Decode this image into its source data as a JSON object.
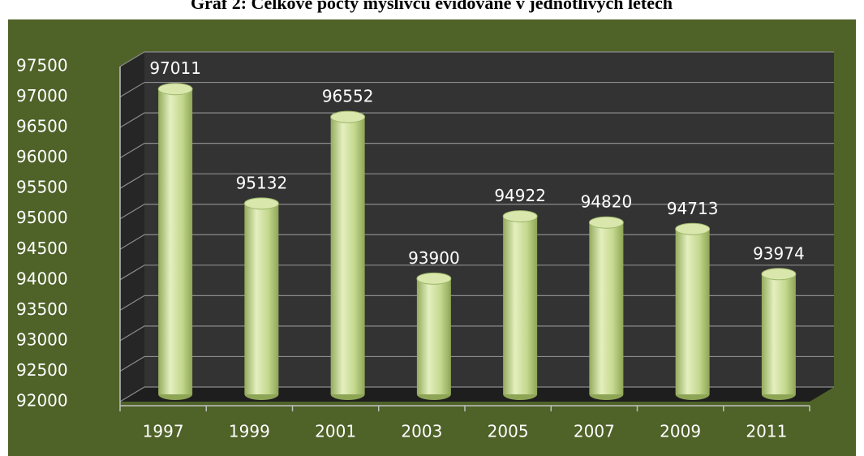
{
  "chart_data": {
    "type": "bar",
    "title": "Graf 2:  Celkové počty myslivců evidované v jednotlivých letech",
    "categories": [
      "1997",
      "1999",
      "2001",
      "2003",
      "2005",
      "2007",
      "2009",
      "2011"
    ],
    "values": [
      97011,
      95132,
      96552,
      93900,
      94922,
      94820,
      94713,
      93974
    ],
    "color": "#c4d88e",
    "ylim": [
      92000,
      97500
    ],
    "yticks": [
      92000,
      92500,
      93000,
      93500,
      94000,
      94500,
      95000,
      95500,
      96000,
      96500,
      97000,
      97500
    ],
    "grid": true
  }
}
